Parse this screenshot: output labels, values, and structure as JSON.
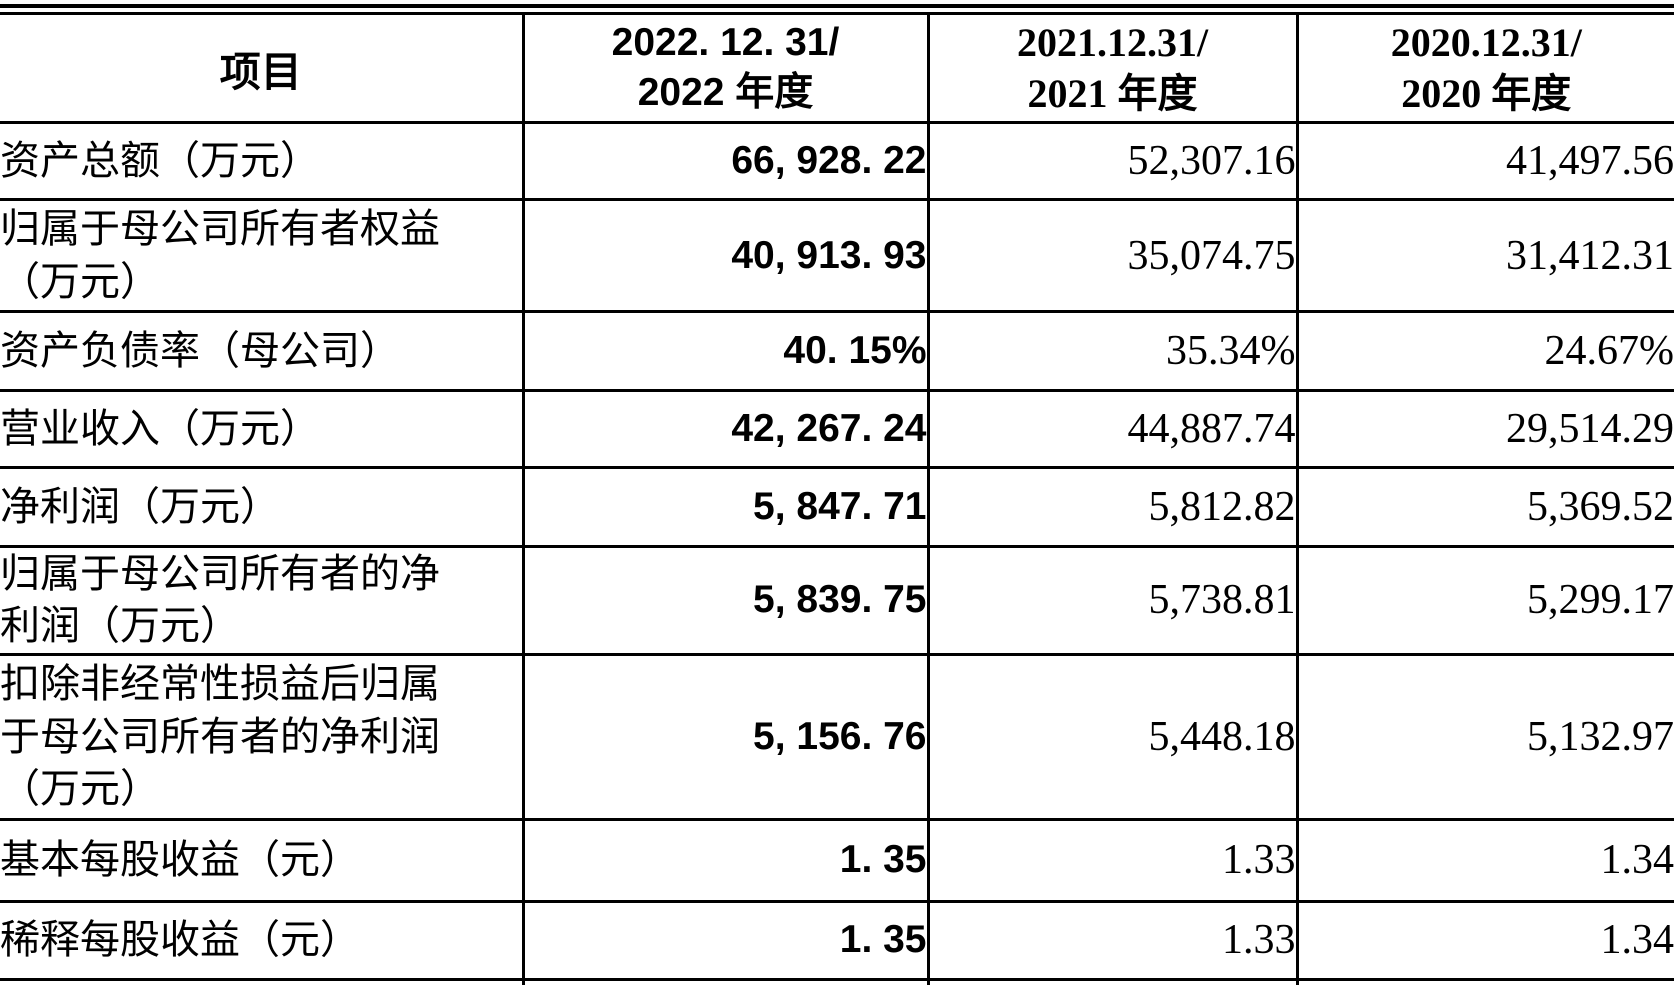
{
  "colors": {
    "border": "#000000",
    "text": "#000000",
    "background": "#ffffff"
  },
  "table": {
    "header": {
      "item": "项目",
      "col2022": "2022. 12. 31/\n2022 年度",
      "col2021": "2021.12.31/\n2021 年度",
      "col2020": "2020.12.31/\n2020 年度"
    },
    "rows": [
      {
        "label": "资产总额（万元）",
        "y2022": "66, 928. 22",
        "y2021": "52,307.16",
        "y2020": "41,497.56"
      },
      {
        "label": "归属于母公司所有者权益\n（万元）",
        "y2022": "40, 913. 93",
        "y2021": "35,074.75",
        "y2020": "31,412.31"
      },
      {
        "label": "资产负债率（母公司）",
        "y2022": "40. 15%",
        "y2021": "35.34%",
        "y2020": "24.67%"
      },
      {
        "label": "营业收入（万元）",
        "y2022": "42, 267. 24",
        "y2021": "44,887.74",
        "y2020": "29,514.29"
      },
      {
        "label": "净利润（万元）",
        "y2022": "5, 847. 71",
        "y2021": "5,812.82",
        "y2020": "5,369.52"
      },
      {
        "label": "归属于母公司所有者的净\n利润（万元）",
        "y2022": "5, 839. 75",
        "y2021": "5,738.81",
        "y2020": "5,299.17"
      },
      {
        "label": "扣除非经常性损益后归属\n于母公司所有者的净利润\n（万元）",
        "y2022": "5, 156. 76",
        "y2021": "5,448.18",
        "y2020": "5,132.97"
      },
      {
        "label": "基本每股收益（元）",
        "y2022": "1. 35",
        "y2021": "1.33",
        "y2020": "1.34"
      },
      {
        "label": "稀释每股收益（元）",
        "y2022": "1. 35",
        "y2021": "1.33",
        "y2020": "1.34"
      }
    ]
  }
}
